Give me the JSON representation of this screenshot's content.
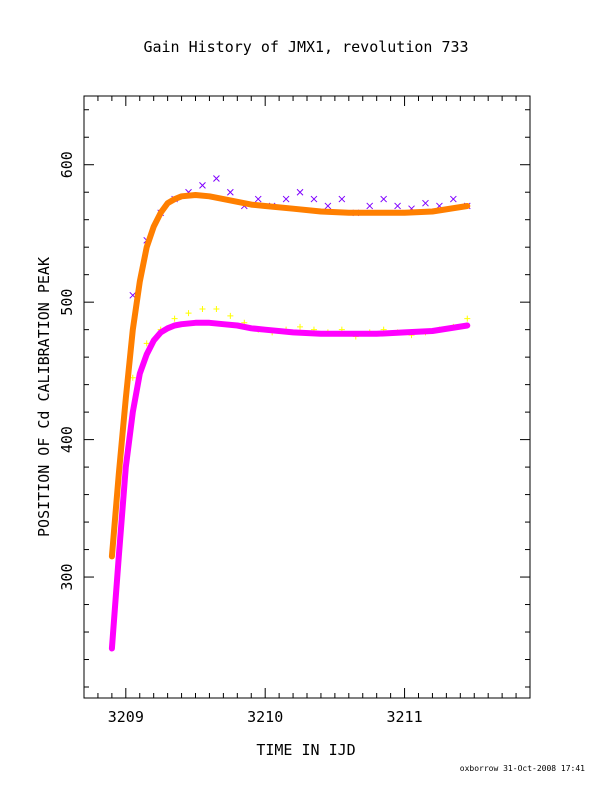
{
  "chart_data": {
    "type": "scatter",
    "title": "Gain History of JMX1, revolution 733",
    "xlabel": "TIME IN IJD",
    "ylabel": "POSITION OF Cd CALIBRATION PEAK",
    "xlim": [
      3208.7,
      3211.9
    ],
    "ylim": [
      212,
      650
    ],
    "xticks": [
      3209,
      3210,
      3211
    ],
    "xtick_labels": [
      "3209",
      "3210",
      "3211"
    ],
    "yticks": [
      300,
      400,
      500,
      600
    ],
    "ytick_labels": [
      "300",
      "400",
      "500",
      "600"
    ],
    "grid": false,
    "legend": "none",
    "series": [
      {
        "marker": "x",
        "color": "#7f00ff",
        "x": [
          3209.05,
          3209.15,
          3209.25,
          3209.35,
          3209.45,
          3209.55,
          3209.65,
          3209.75,
          3209.85,
          3209.95,
          3210.05,
          3210.15,
          3210.25,
          3210.35,
          3210.45,
          3210.55,
          3210.65,
          3210.75,
          3210.85,
          3210.95,
          3211.05,
          3211.15,
          3211.25,
          3211.35,
          3211.45
        ],
        "y": [
          505,
          545,
          565,
          575,
          580,
          585,
          590,
          580,
          570,
          575,
          570,
          575,
          580,
          575,
          570,
          575,
          565,
          570,
          575,
          570,
          568,
          572,
          570,
          575,
          570
        ]
      },
      {
        "marker": "+",
        "color": "#ffff00",
        "x": [
          3209.05,
          3209.15,
          3209.25,
          3209.35,
          3209.45,
          3209.55,
          3209.65,
          3209.75,
          3209.85,
          3209.95,
          3210.05,
          3210.15,
          3210.25,
          3210.35,
          3210.45,
          3210.55,
          3210.65,
          3210.75,
          3210.85,
          3210.95,
          3211.05,
          3211.15,
          3211.25,
          3211.35,
          3211.45
        ],
        "y": [
          445,
          470,
          480,
          488,
          492,
          495,
          495,
          490,
          485,
          480,
          478,
          480,
          482,
          480,
          478,
          480,
          475,
          478,
          480,
          478,
          476,
          478,
          480,
          482,
          488
        ]
      },
      {
        "type": "line",
        "color": "#ff7f00",
        "x": [
          3208.9,
          3208.95,
          3209.0,
          3209.05,
          3209.1,
          3209.15,
          3209.2,
          3209.25,
          3209.3,
          3209.35,
          3209.4,
          3209.5,
          3209.6,
          3209.7,
          3209.8,
          3209.9,
          3210.0,
          3210.2,
          3210.4,
          3210.6,
          3210.8,
          3211.0,
          3211.2,
          3211.45
        ],
        "y": [
          315,
          375,
          430,
          480,
          515,
          540,
          555,
          565,
          572,
          575,
          577,
          578,
          577,
          575,
          573,
          571,
          570,
          568,
          566,
          565,
          565,
          565,
          566,
          570
        ]
      },
      {
        "type": "line",
        "color": "#ff00ff",
        "x": [
          3208.9,
          3208.95,
          3209.0,
          3209.05,
          3209.1,
          3209.15,
          3209.2,
          3209.25,
          3209.3,
          3209.35,
          3209.4,
          3209.5,
          3209.6,
          3209.7,
          3209.8,
          3209.9,
          3210.0,
          3210.2,
          3210.4,
          3210.6,
          3210.8,
          3211.0,
          3211.2,
          3211.45
        ],
        "y": [
          248,
          315,
          380,
          420,
          448,
          462,
          472,
          478,
          481,
          483,
          484,
          485,
          485,
          484,
          483,
          481,
          480,
          478,
          477,
          477,
          477,
          478,
          479,
          483
        ]
      }
    ]
  },
  "footer": {
    "credit": "oxborrow 31-Oct-2008 17:41"
  }
}
